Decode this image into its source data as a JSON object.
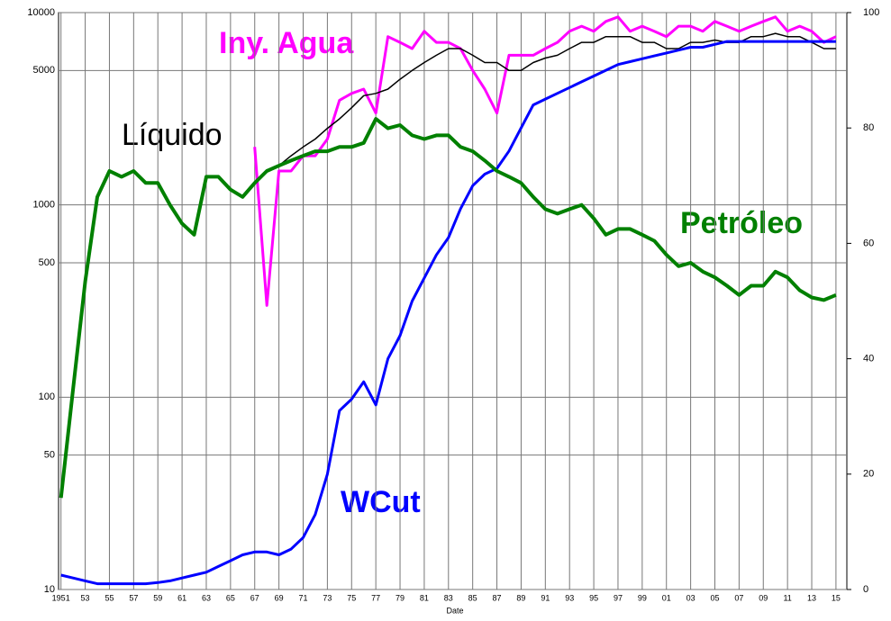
{
  "chart_data": {
    "type": "line",
    "x_label": "Date",
    "y_scale": "log",
    "grid": true,
    "x": [
      1951,
      1952,
      1953,
      1954,
      1955,
      1956,
      1957,
      1958,
      1959,
      1960,
      1961,
      1962,
      1963,
      1964,
      1965,
      1966,
      1967,
      1968,
      1969,
      1970,
      1971,
      1972,
      1973,
      1974,
      1975,
      1976,
      1977,
      1978,
      1979,
      1980,
      1981,
      1982,
      1983,
      1984,
      1985,
      1986,
      1987,
      1988,
      1989,
      1990,
      1991,
      1992,
      1993,
      1994,
      1995,
      1996,
      1997,
      1998,
      1999,
      2000,
      2001,
      2002,
      2003,
      2004,
      2005,
      2006,
      2007,
      2008,
      2009,
      2010,
      2011,
      2012,
      2013,
      2014,
      2015
    ],
    "xlim": [
      1950.8,
      2015.9
    ],
    "xticks": [
      {
        "value": 1951,
        "label": "1951"
      },
      {
        "value": 1953,
        "label": "53"
      },
      {
        "value": 1955,
        "label": "55"
      },
      {
        "value": 1957,
        "label": "57"
      },
      {
        "value": 1959,
        "label": "59"
      },
      {
        "value": 1961,
        "label": "61"
      },
      {
        "value": 1963,
        "label": "63"
      },
      {
        "value": 1965,
        "label": "65"
      },
      {
        "value": 1967,
        "label": "67"
      },
      {
        "value": 1969,
        "label": "69"
      },
      {
        "value": 1971,
        "label": "71"
      },
      {
        "value": 1973,
        "label": "73"
      },
      {
        "value": 1975,
        "label": "75"
      },
      {
        "value": 1977,
        "label": "77"
      },
      {
        "value": 1979,
        "label": "79"
      },
      {
        "value": 1981,
        "label": "81"
      },
      {
        "value": 1983,
        "label": "83"
      },
      {
        "value": 1985,
        "label": "85"
      },
      {
        "value": 1987,
        "label": "87"
      },
      {
        "value": 1989,
        "label": "89"
      },
      {
        "value": 1991,
        "label": "91"
      },
      {
        "value": 1993,
        "label": "93"
      },
      {
        "value": 1995,
        "label": "95"
      },
      {
        "value": 1997,
        "label": "97"
      },
      {
        "value": 1999,
        "label": "99"
      },
      {
        "value": 2001,
        "label": "01"
      },
      {
        "value": 2003,
        "label": "03"
      },
      {
        "value": 2005,
        "label": "05"
      },
      {
        "value": 2007,
        "label": "07"
      },
      {
        "value": 2009,
        "label": "09"
      },
      {
        "value": 2011,
        "label": "11"
      },
      {
        "value": 2013,
        "label": "13"
      },
      {
        "value": 2015,
        "label": "15"
      }
    ],
    "ylim": [
      10,
      10000
    ],
    "yticks": [
      10,
      50,
      100,
      500,
      1000,
      5000,
      10000
    ],
    "y2lim": [
      0,
      100
    ],
    "y2ticks": [
      0,
      20,
      40,
      60,
      80,
      100
    ],
    "series": [
      {
        "name": "Líquido",
        "color": "#000000",
        "values": [
          30,
          110,
          400,
          1100,
          1500,
          1400,
          1500,
          1300,
          1300,
          1000,
          800,
          700,
          1400,
          1400,
          1200,
          1100,
          1300,
          1500,
          1600,
          1800,
          2000,
          2200,
          2500,
          2800,
          3200,
          3700,
          3800,
          4000,
          4500,
          5000,
          5500,
          6000,
          6500,
          6500,
          6000,
          5500,
          5500,
          5000,
          5000,
          5500,
          5800,
          6000,
          6500,
          7000,
          7000,
          7500,
          7500,
          7500,
          7000,
          7000,
          6500,
          6500,
          7000,
          7000,
          7200,
          7000,
          7000,
          7500,
          7500,
          7800,
          7500,
          7500,
          7000,
          6500,
          6500
        ]
      },
      {
        "name": "Petróleo",
        "color": "#008000",
        "values": [
          30,
          110,
          400,
          1100,
          1500,
          1400,
          1500,
          1300,
          1300,
          1000,
          800,
          700,
          1400,
          1400,
          1200,
          1100,
          1300,
          1500,
          1600,
          1700,
          1800,
          1900,
          1900,
          2000,
          2000,
          2100,
          2800,
          2500,
          2600,
          2300,
          2200,
          2300,
          2300,
          2000,
          1900,
          1700,
          1500,
          1400,
          1300,
          1100,
          950,
          900,
          950,
          1000,
          850,
          700,
          750,
          750,
          700,
          650,
          550,
          480,
          500,
          450,
          420,
          380,
          340,
          380,
          380,
          450,
          420,
          360,
          330,
          320,
          340
        ]
      },
      {
        "name": "Iny. Agua",
        "color": "#ff00ff",
        "values": [
          null,
          null,
          null,
          null,
          null,
          null,
          null,
          null,
          null,
          null,
          null,
          null,
          null,
          null,
          null,
          null,
          2000,
          300,
          1500,
          1500,
          1800,
          1800,
          2200,
          3500,
          3800,
          4000,
          3000,
          7500,
          7000,
          6500,
          8000,
          7000,
          7000,
          6500,
          5000,
          4000,
          3000,
          6000,
          6000,
          6000,
          6500,
          7000,
          8000,
          8500,
          8000,
          9000,
          9500,
          8000,
          8500,
          8000,
          7500,
          8500,
          8500,
          8000,
          9000,
          8500,
          8000,
          8500,
          9000,
          9500,
          8000,
          8500,
          8000,
          7000,
          7500
        ]
      },
      {
        "name": "WCut",
        "color": "#0000ff",
        "axis": "y2",
        "values": [
          2.5,
          2,
          1.5,
          1,
          1,
          1,
          1,
          1,
          1.2,
          1.5,
          2,
          2.5,
          3,
          4,
          5,
          6,
          6.5,
          6.5,
          6,
          7,
          9,
          13,
          20,
          31,
          33,
          36,
          32,
          40,
          44,
          50,
          54,
          58,
          61,
          66,
          70,
          72,
          73,
          76,
          80,
          84,
          85,
          86,
          87,
          88,
          89,
          90,
          91,
          91.5,
          92,
          92.5,
          93,
          93.5,
          94,
          94,
          94.5,
          95,
          95,
          95,
          95,
          95,
          95,
          95,
          95,
          95,
          95
        ]
      }
    ]
  }
}
